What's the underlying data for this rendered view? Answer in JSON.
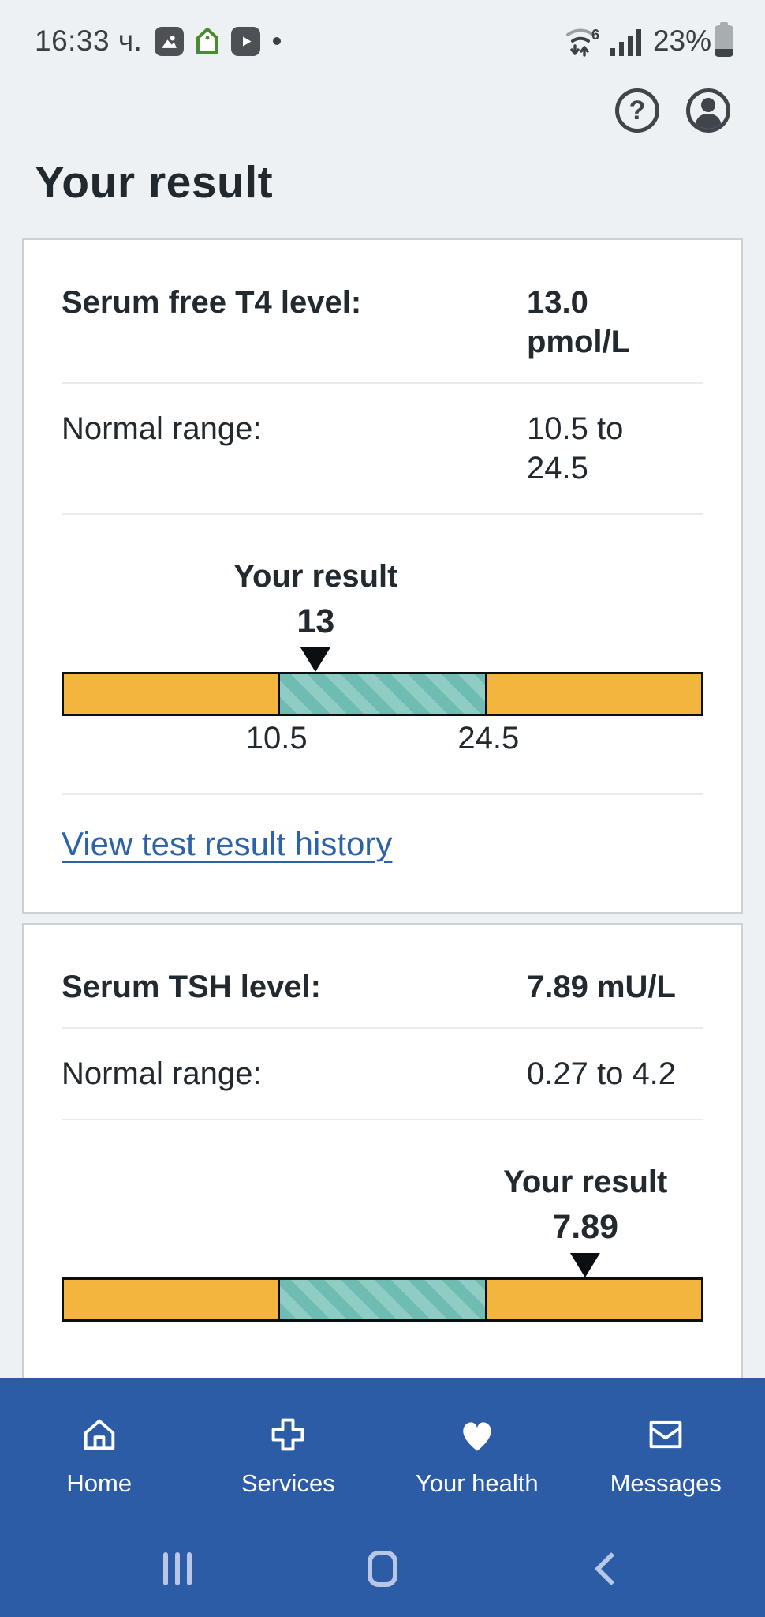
{
  "status_bar": {
    "time": "16:33 ч.",
    "battery_percent": "23%",
    "battery_level_pct": 23,
    "notification_icons": [
      "photos",
      "home-app",
      "youtube",
      "more-notifications-dot"
    ],
    "system_icons": [
      "wifi-6",
      "signal-strength",
      "battery"
    ],
    "wifi_standard": "6"
  },
  "header": {
    "help_glyph": "?",
    "page_title": "Your result"
  },
  "cards": [
    {
      "rows": [
        {
          "label": "Serum free T4 level:",
          "value": "13.0\npmol/L"
        },
        {
          "label": "Normal range:",
          "value": "10.5 to\n24.5"
        }
      ],
      "chart": {
        "annotation_label": "Your result",
        "annotation_value": "13",
        "low_label": "10.5",
        "high_label": "24.5",
        "marker_pct": 39.6,
        "labels_visible": true
      },
      "link_label": "View test result history"
    },
    {
      "rows": [
        {
          "label": "Serum TSH level:",
          "value": "7.89 mU/L"
        },
        {
          "label": "Normal range:",
          "value": "0.27 to 4.2"
        }
      ],
      "chart": {
        "annotation_label": "Your result",
        "annotation_value": "7.89",
        "marker_pct": 81.6,
        "labels_visible": false
      }
    }
  ],
  "chart_data": [
    {
      "type": "range-bar",
      "title": "Serum free T4 level",
      "unit": "pmol/L",
      "result": 13.0,
      "normal_range": [
        10.5,
        24.5
      ],
      "marker_position_pct": 39.6,
      "visible_tick_labels": [
        "10.5",
        "24.5"
      ],
      "bands": [
        "below-range",
        "normal-range-hatched",
        "above-range"
      ],
      "band_colors": [
        "#f3b53e",
        "#6fbcb2",
        "#f3b53e"
      ]
    },
    {
      "type": "range-bar",
      "title": "Serum TSH level",
      "unit": "mU/L",
      "result": 7.89,
      "normal_range": [
        0.27,
        4.2
      ],
      "marker_position_pct": 81.6,
      "visible_tick_labels": [],
      "bands": [
        "below-range",
        "normal-range-hatched",
        "above-range"
      ],
      "band_colors": [
        "#f3b53e",
        "#6fbcb2",
        "#f3b53e"
      ]
    }
  ],
  "bottom_nav": {
    "items": [
      {
        "label": "Home",
        "icon": "home-icon"
      },
      {
        "label": "Services",
        "icon": "services-cross-icon"
      },
      {
        "label": "Your health",
        "icon": "heart-icon"
      },
      {
        "label": "Messages",
        "icon": "messages-envelope-icon"
      }
    ]
  },
  "android_nav": [
    "recents",
    "home",
    "back"
  ],
  "colors": {
    "page_background": "#eef1f3",
    "text": "#22292f",
    "nav_blue": "#2d5ca6",
    "link_blue": "#2c62ac",
    "band_orange": "#f3b53e",
    "band_teal": "#6fbcb2",
    "band_teal_stripe": "#8ecdc4",
    "marker_black": "#0c0f12"
  }
}
